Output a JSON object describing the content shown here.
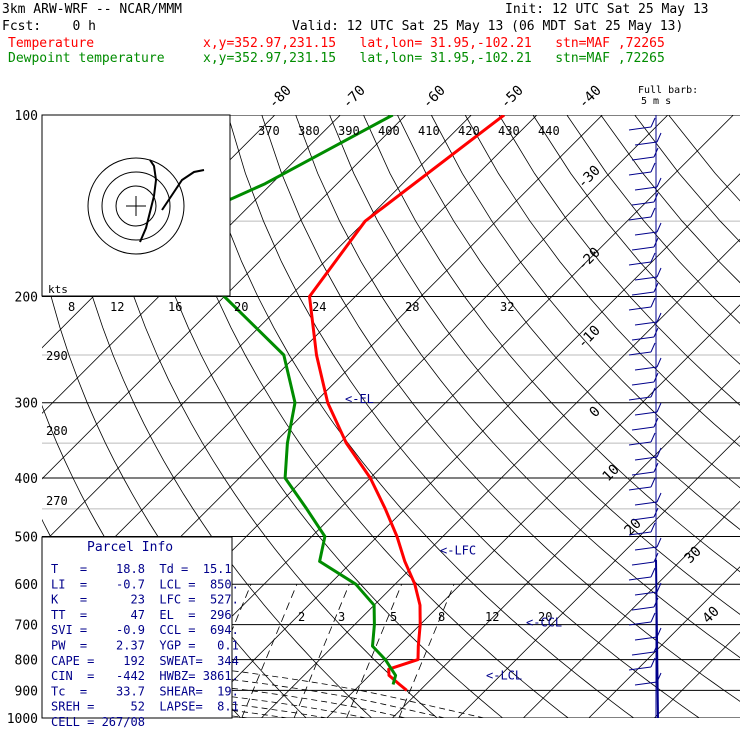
{
  "header": {
    "model": "3km ARW-WRF -- NCAR/MMM",
    "init": "Init: 12 UTC Sat 25 May 13",
    "fcst": "Fcst:    0 h",
    "valid": "Valid: 12 UTC Sat 25 May 13 (06 MDT Sat 25 May 13)",
    "temp_label": "Temperature",
    "temp_loc": "x,y=352.97,231.15   lat,lon= 31.95,-102.21   stn=MAF ,72265",
    "dew_label": "Dewpoint temperature",
    "dew_loc": "x,y=352.97,231.15   lat,lon= 31.95,-102.21   stn=MAF ,72265"
  },
  "colors": {
    "temperature": "#ff0000",
    "dewpoint": "#008c00",
    "text": "#000000",
    "info": "#00008b"
  },
  "barb_label": {
    "line1": "Full barb:",
    "line2": "5 m s"
  },
  "hodograph_label": "kts",
  "parcel_info": {
    "title": "Parcel Info",
    "rows": [
      "T   =    18.8  Td =  15.1",
      "LI  =    -0.7  LCL =  850.",
      "K   =      23  LFC =  527.",
      "TT  =      47  EL  =  296",
      "SVI =    -0.9  CCL =  694.",
      "PW  =    2.37  YGP =   0.1",
      "CAPE =    192  SWEAT=  344",
      "CIN  =   -442  HWBZ= 3861.",
      "Tc  =    33.7  SHEAR=  19.",
      "SREH =     52  LAPSE=  8.1",
      "CELL = 267/08"
    ]
  },
  "chart_data": {
    "type": "line",
    "title": "",
    "y_axis": "Pressure (hPa), log scale",
    "pressure_ticks": [
      100,
      200,
      300,
      400,
      500,
      600,
      700,
      800,
      900,
      1000
    ],
    "isotherm_labels": [
      "-80",
      "-70",
      "-60",
      "-50",
      "-40",
      "-30",
      "-20",
      "-10",
      "0",
      "10",
      "20",
      "30",
      "40"
    ],
    "theta_labels": [
      "370",
      "380",
      "390",
      "400",
      "410",
      "420",
      "430",
      "440"
    ],
    "theta_labels_left": [
      "290",
      "280",
      "270"
    ],
    "mixing_ratio_labels": [
      "2",
      "3",
      "5",
      "8",
      "12",
      "20"
    ],
    "hodograph_speed_labels": [
      "8",
      "12",
      "16",
      "20",
      "24",
      "28",
      "32"
    ],
    "levels": [
      {
        "name": "<-EL",
        "p": 296
      },
      {
        "name": "<-LFC",
        "p": 527
      },
      {
        "name": "<-CCL",
        "p": 694
      },
      {
        "name": "<-LCL",
        "p": 850
      }
    ],
    "series": [
      {
        "name": "Temperature",
        "points": [
          [
            100,
            -55
          ],
          [
            150,
            -60
          ],
          [
            200,
            -57
          ],
          [
            250,
            -47
          ],
          [
            300,
            -38
          ],
          [
            350,
            -29
          ],
          [
            400,
            -20
          ],
          [
            450,
            -13
          ],
          [
            500,
            -7
          ],
          [
            550,
            -2
          ],
          [
            600,
            3
          ],
          [
            650,
            7
          ],
          [
            700,
            10
          ],
          [
            760,
            13
          ],
          [
            800,
            15
          ],
          [
            830,
            12
          ],
          [
            850,
            13
          ],
          [
            880,
            16
          ],
          [
            900,
            18
          ]
        ]
      },
      {
        "name": "Dewpoint temperature",
        "points": [
          [
            100,
            -72
          ],
          [
            130,
            -81
          ],
          [
            150,
            -88
          ],
          [
            170,
            -87
          ],
          [
            200,
            -70
          ],
          [
            250,
            -52
          ],
          [
            300,
            -43
          ],
          [
            350,
            -38
          ],
          [
            400,
            -33
          ],
          [
            450,
            -25
          ],
          [
            500,
            -18
          ],
          [
            550,
            -15
          ],
          [
            600,
            -6
          ],
          [
            650,
            0
          ],
          [
            700,
            3
          ],
          [
            760,
            6
          ],
          [
            800,
            10
          ],
          [
            850,
            14
          ],
          [
            880,
            15
          ]
        ]
      }
    ]
  }
}
